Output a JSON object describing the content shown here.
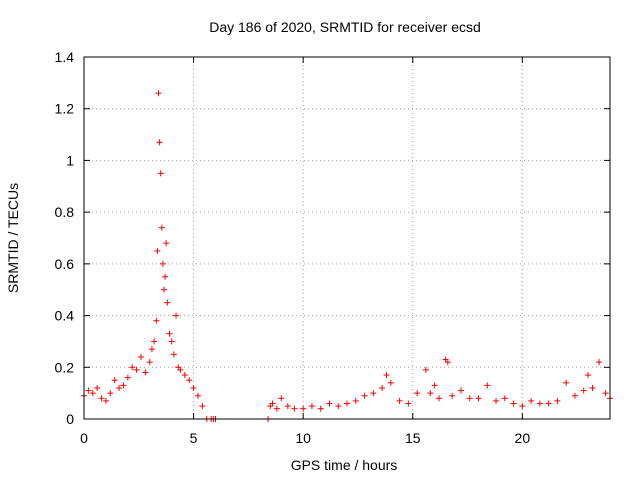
{
  "chart_data": {
    "type": "scatter",
    "title": "Day 186 of 2020, SRMTID for receiver ecsd",
    "xlabel": "GPS time / hours",
    "ylabel": "SRMTID / TECUs",
    "xlim": [
      0,
      24
    ],
    "ylim": [
      0,
      1.4
    ],
    "xticks": [
      0,
      5,
      10,
      15,
      20
    ],
    "xtick_labels": [
      "0",
      "5",
      "10",
      "15",
      "20"
    ],
    "yticks": [
      0,
      0.2,
      0.4,
      0.6,
      0.8,
      1,
      1.2,
      1.4
    ],
    "ytick_labels": [
      "0",
      "0.2",
      "0.4",
      "0.6",
      "0.8",
      "1",
      "1.2",
      "1.4"
    ],
    "grid": true,
    "marker": "+",
    "color": "#ff0000",
    "series": [
      {
        "name": "SRMTID",
        "x": [
          0.0,
          0.2,
          0.4,
          0.6,
          0.8,
          1.0,
          1.2,
          1.4,
          1.6,
          1.8,
          2.0,
          2.2,
          2.4,
          2.6,
          2.8,
          3.0,
          3.1,
          3.2,
          3.3,
          3.35,
          3.4,
          3.45,
          3.5,
          3.55,
          3.6,
          3.65,
          3.7,
          3.75,
          3.8,
          3.9,
          4.0,
          4.1,
          4.2,
          4.3,
          4.4,
          4.6,
          4.8,
          5.0,
          5.2,
          5.4,
          5.6,
          5.8,
          5.9,
          6.0,
          8.4,
          8.5,
          8.6,
          8.8,
          9.0,
          9.3,
          9.6,
          10.0,
          10.4,
          10.8,
          11.2,
          11.6,
          12.0,
          12.4,
          12.8,
          13.2,
          13.6,
          13.8,
          14.0,
          14.4,
          14.8,
          15.2,
          15.6,
          15.8,
          16.0,
          16.2,
          16.5,
          16.6,
          16.8,
          17.2,
          17.6,
          18.0,
          18.4,
          18.8,
          19.2,
          19.6,
          20.0,
          20.4,
          20.8,
          21.2,
          21.6,
          22.0,
          22.4,
          22.8,
          23.0,
          23.2,
          23.5,
          23.8,
          24.0
        ],
        "y": [
          0.09,
          0.11,
          0.1,
          0.12,
          0.08,
          0.07,
          0.1,
          0.15,
          0.12,
          0.13,
          0.16,
          0.2,
          0.19,
          0.24,
          0.18,
          0.22,
          0.27,
          0.3,
          0.38,
          0.65,
          1.26,
          1.07,
          0.95,
          0.74,
          0.6,
          0.5,
          0.55,
          0.68,
          0.45,
          0.33,
          0.3,
          0.25,
          0.4,
          0.2,
          0.19,
          0.17,
          0.15,
          0.12,
          0.09,
          0.05,
          0.0,
          0.0,
          0.0,
          0.0,
          0.0,
          0.05,
          0.06,
          0.04,
          0.08,
          0.05,
          0.04,
          0.04,
          0.05,
          0.04,
          0.06,
          0.05,
          0.06,
          0.07,
          0.09,
          0.1,
          0.12,
          0.17,
          0.14,
          0.07,
          0.06,
          0.1,
          0.19,
          0.1,
          0.13,
          0.08,
          0.23,
          0.22,
          0.09,
          0.11,
          0.08,
          0.08,
          0.13,
          0.07,
          0.08,
          0.06,
          0.05,
          0.07,
          0.06,
          0.06,
          0.07,
          0.14,
          0.09,
          0.11,
          0.17,
          0.12,
          0.22,
          0.1,
          0.08
        ]
      }
    ]
  }
}
